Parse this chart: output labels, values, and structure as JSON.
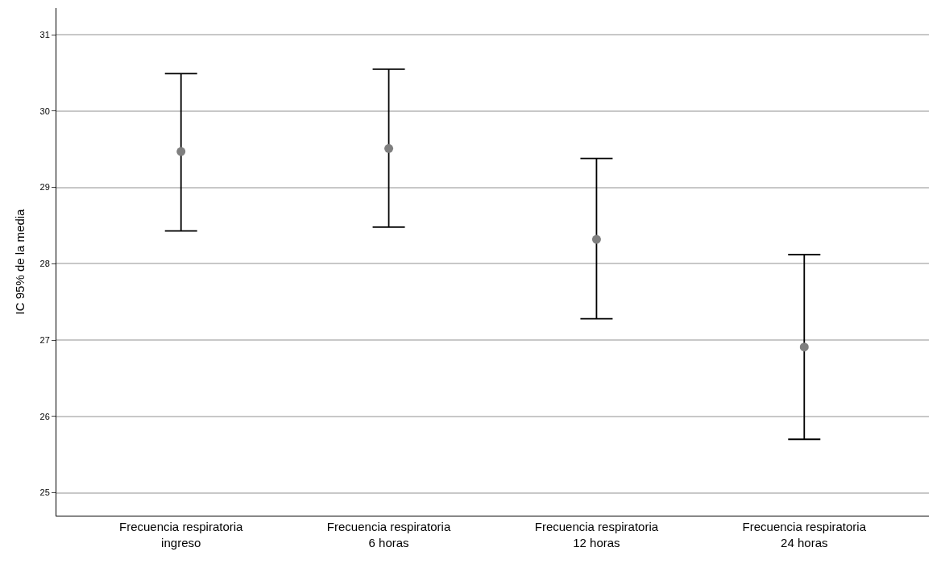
{
  "chart_data": {
    "type": "scatter",
    "ylabel": "IC 95% de la media",
    "categories": [
      "Frecuencia respiratoria ingreso",
      "Frecuencia respiratoria 6 horas",
      "Frecuencia respiratoria 12 horas",
      "Frecuencia respiratoria 24 horas"
    ],
    "color": "#7f7f7f",
    "values": [
      29.47,
      29.51,
      28.32,
      26.91
    ],
    "errors": [
      [
        28.43,
        30.49
      ],
      [
        28.48,
        30.55
      ],
      [
        27.28,
        29.38
      ],
      [
        25.7,
        28.12
      ]
    ],
    "ylim": [
      24.7,
      31.35
    ],
    "yticks": [
      25,
      26,
      27,
      28,
      29,
      30,
      31
    ],
    "grid": "y",
    "marker": "circle"
  }
}
